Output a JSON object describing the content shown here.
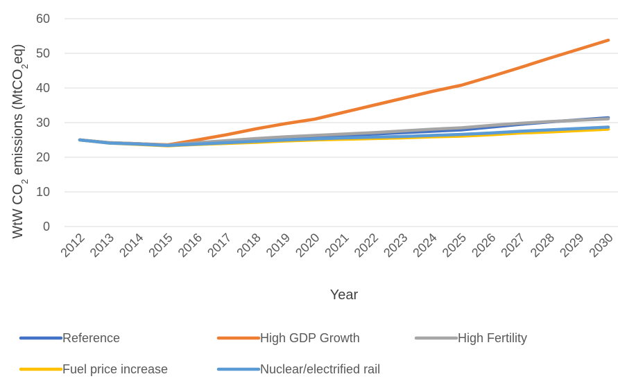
{
  "chart_data": {
    "type": "line",
    "title": "",
    "xlabel": "Year",
    "ylabel_main": "WtW CO",
    "ylabel_sub": "2",
    "ylabel_rest": " emissions (MtCO",
    "ylabel_sub2": "2",
    "ylabel_end": "eq)",
    "ylim": [
      0,
      60
    ],
    "yticks": [
      0,
      10,
      20,
      30,
      40,
      50,
      60
    ],
    "grid": true,
    "legend_position": "bottom",
    "x": [
      "2012",
      "2013",
      "2014",
      "2015",
      "2016",
      "2017",
      "2018",
      "2019",
      "2020",
      "2021",
      "2022",
      "2023",
      "2024",
      "2025",
      "2026",
      "2027",
      "2028",
      "2029",
      "2030"
    ],
    "series": [
      {
        "name": "Reference",
        "color": "#4472C4",
        "values": [
          25.0,
          24.2,
          23.9,
          23.5,
          24.1,
          24.6,
          25.2,
          25.6,
          26.0,
          26.3,
          26.7,
          27.1,
          27.5,
          27.9,
          28.7,
          29.5,
          30.2,
          30.8,
          31.4
        ]
      },
      {
        "name": "High GDP Growth",
        "color": "#ED7D31",
        "values": [
          25.0,
          24.2,
          23.9,
          23.6,
          25.0,
          26.5,
          28.2,
          29.7,
          31.0,
          33.0,
          35.0,
          37.0,
          39.0,
          40.8,
          43.3,
          45.9,
          48.6,
          51.2,
          53.8
        ]
      },
      {
        "name": "High Fertility",
        "color": "#A5A5A5",
        "values": [
          25.0,
          24.2,
          23.9,
          23.5,
          24.2,
          24.8,
          25.4,
          25.9,
          26.3,
          26.7,
          27.1,
          27.6,
          28.1,
          28.5,
          29.2,
          29.8,
          30.3,
          30.7,
          31.1
        ]
      },
      {
        "name": "Fuel price increase",
        "color": "#FFC000",
        "values": [
          25.0,
          24.1,
          23.7,
          23.3,
          23.7,
          24.0,
          24.3,
          24.7,
          25.0,
          25.2,
          25.4,
          25.6,
          25.9,
          26.1,
          26.5,
          27.0,
          27.3,
          27.7,
          28.1
        ]
      },
      {
        "name": "Nuclear/electrified rail",
        "color": "#5B9BD5",
        "values": [
          25.0,
          24.1,
          23.8,
          23.4,
          23.8,
          24.2,
          24.6,
          25.0,
          25.3,
          25.6,
          25.8,
          26.0,
          26.3,
          26.6,
          27.0,
          27.5,
          27.9,
          28.3,
          28.7
        ]
      }
    ]
  }
}
